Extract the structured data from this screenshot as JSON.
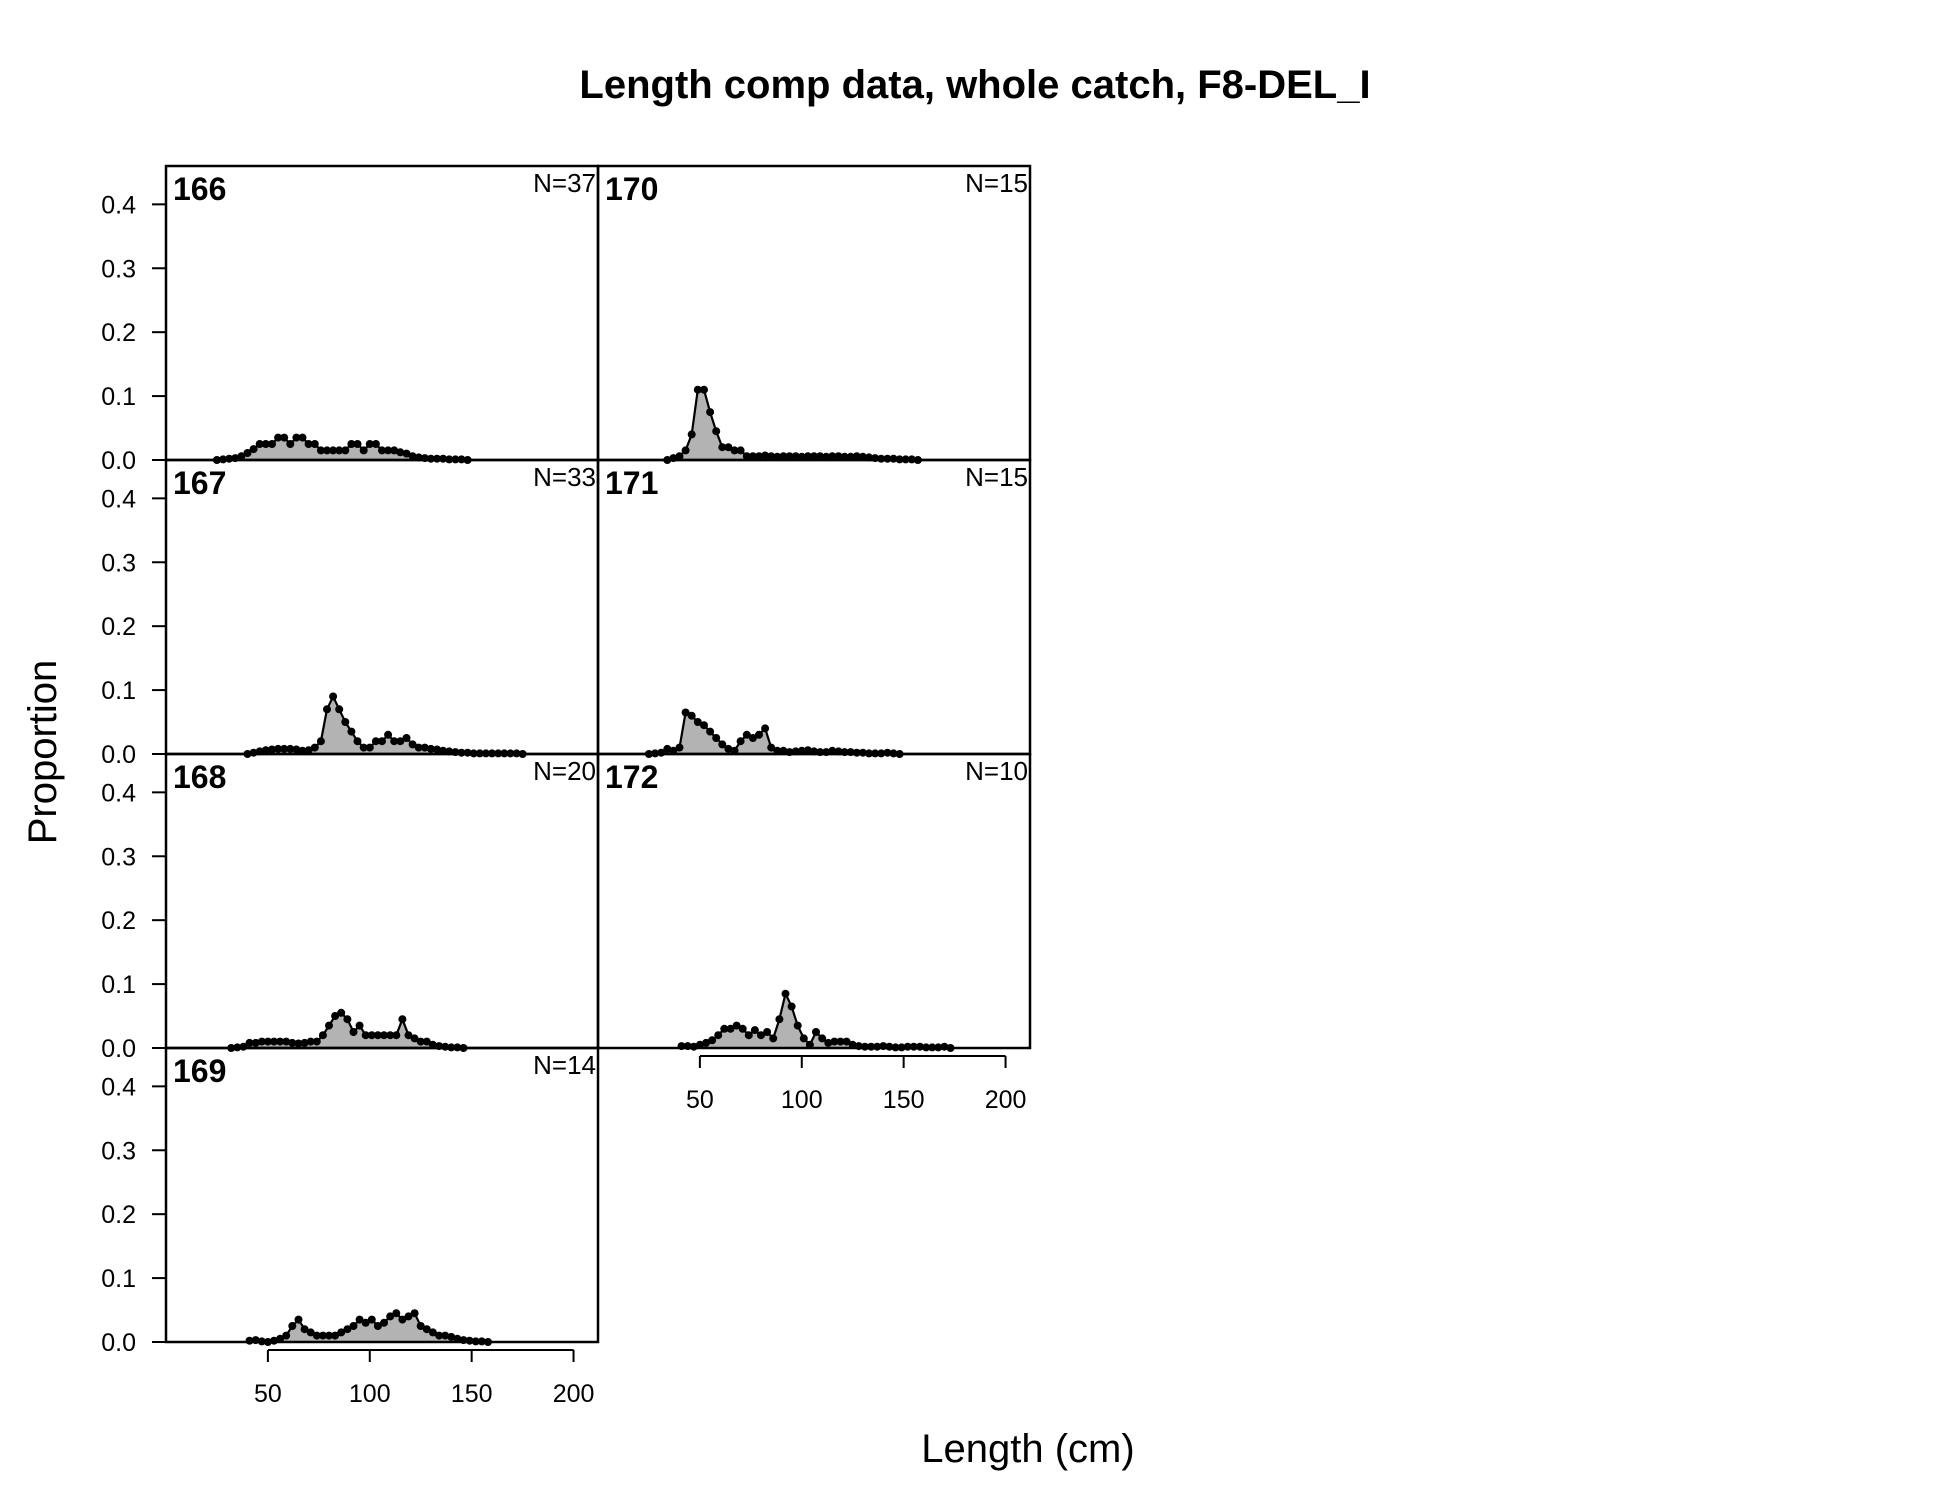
{
  "title": "Length comp data, whole catch, F8-DEL_I",
  "xlabel": "Length (cm)",
  "ylabel": "Proportion",
  "colors": {
    "fill": "#b3b3b3",
    "line": "#000000",
    "frame": "#000000"
  },
  "chart_data": {
    "type": "area",
    "title": "Length comp data, whole catch, F8-DEL_I",
    "xlabel": "Length (cm)",
    "ylabel": "Proportion",
    "xlim": [
      0,
      212
    ],
    "ylim": [
      0,
      0.46
    ],
    "x_ticks": [
      50,
      100,
      150,
      200
    ],
    "y_ticks": [
      0.0,
      0.1,
      0.2,
      0.3,
      0.4
    ],
    "y_tick_labels": [
      "0.0",
      "0.1",
      "0.2",
      "0.3",
      "0.4"
    ],
    "x_step": 3,
    "panels": [
      {
        "label": "166",
        "n_label": "N=37",
        "x0": 25,
        "values": [
          0,
          0.001,
          0.002,
          0.003,
          0.006,
          0.011,
          0.017,
          0.025,
          0.025,
          0.025,
          0.035,
          0.035,
          0.025,
          0.035,
          0.035,
          0.025,
          0.025,
          0.015,
          0.015,
          0.015,
          0.015,
          0.015,
          0.025,
          0.025,
          0.015,
          0.025,
          0.025,
          0.015,
          0.015,
          0.015,
          0.012,
          0.01,
          0.006,
          0.004,
          0.003,
          0.002,
          0.002,
          0.002,
          0.001,
          0.001,
          0.001,
          0
        ]
      },
      {
        "label": "170",
        "n_label": "N=15",
        "x0": 34,
        "values": [
          0,
          0.003,
          0.006,
          0.015,
          0.04,
          0.11,
          0.11,
          0.075,
          0.045,
          0.02,
          0.02,
          0.015,
          0.015,
          0.006,
          0.006,
          0.006,
          0.007,
          0.006,
          0.005,
          0.006,
          0.006,
          0.006,
          0.005,
          0.006,
          0.006,
          0.006,
          0.005,
          0.006,
          0.006,
          0.005,
          0.005,
          0.006,
          0.005,
          0.004,
          0.003,
          0.002,
          0.002,
          0.002,
          0.001,
          0.001,
          0.001,
          0
        ]
      },
      {
        "label": "167",
        "n_label": "N=33",
        "x0": 40,
        "values": [
          0,
          0.002,
          0.004,
          0.006,
          0.007,
          0.008,
          0.008,
          0.008,
          0.007,
          0.005,
          0.006,
          0.01,
          0.02,
          0.07,
          0.09,
          0.07,
          0.05,
          0.035,
          0.02,
          0.01,
          0.01,
          0.02,
          0.02,
          0.03,
          0.02,
          0.02,
          0.025,
          0.015,
          0.01,
          0.01,
          0.008,
          0.007,
          0.005,
          0.004,
          0.003,
          0.002,
          0.002,
          0.001,
          0.001,
          0.001,
          0.001,
          0.001,
          0.001,
          0.001,
          0.001,
          0
        ]
      },
      {
        "label": "171",
        "n_label": "N=15",
        "x0": 25,
        "values": [
          0,
          0.001,
          0.002,
          0.008,
          0.005,
          0.01,
          0.065,
          0.06,
          0.05,
          0.045,
          0.035,
          0.025,
          0.015,
          0.008,
          0.005,
          0.02,
          0.03,
          0.025,
          0.03,
          0.04,
          0.01,
          0.005,
          0.005,
          0.003,
          0.004,
          0.005,
          0.006,
          0.004,
          0.003,
          0.003,
          0.005,
          0.004,
          0.003,
          0.003,
          0.002,
          0.002,
          0.001,
          0.001,
          0.001,
          0.002,
          0.001,
          0
        ]
      },
      {
        "label": "168",
        "n_label": "N=20",
        "x0": 32,
        "values": [
          0,
          0.001,
          0.002,
          0.008,
          0.008,
          0.01,
          0.01,
          0.01,
          0.01,
          0.01,
          0.008,
          0.007,
          0.008,
          0.01,
          0.01,
          0.02,
          0.035,
          0.05,
          0.055,
          0.045,
          0.025,
          0.035,
          0.02,
          0.02,
          0.02,
          0.02,
          0.02,
          0.02,
          0.045,
          0.02,
          0.015,
          0.01,
          0.01,
          0.005,
          0.003,
          0.002,
          0.001,
          0.001,
          0
        ]
      },
      {
        "label": "172",
        "n_label": "N=10",
        "x0": 41,
        "values": [
          0.003,
          0.003,
          0.002,
          0.005,
          0.008,
          0.012,
          0.02,
          0.03,
          0.03,
          0.035,
          0.03,
          0.02,
          0.028,
          0.02,
          0.025,
          0.015,
          0.045,
          0.085,
          0.065,
          0.035,
          0.015,
          0.005,
          0.025,
          0.015,
          0.008,
          0.01,
          0.01,
          0.01,
          0.005,
          0.003,
          0.002,
          0.002,
          0.002,
          0.003,
          0.002,
          0.001,
          0.001,
          0.002,
          0.002,
          0.002,
          0.001,
          0.001,
          0.001,
          0.002,
          0
        ]
      },
      {
        "label": "169",
        "n_label": "N=14",
        "x0": 41,
        "values": [
          0.002,
          0.003,
          0.001,
          0,
          0.002,
          0.005,
          0.01,
          0.025,
          0.035,
          0.02,
          0.015,
          0.01,
          0.01,
          0.01,
          0.01,
          0.015,
          0.02,
          0.025,
          0.035,
          0.03,
          0.035,
          0.025,
          0.03,
          0.04,
          0.045,
          0.035,
          0.04,
          0.045,
          0.025,
          0.02,
          0.015,
          0.01,
          0.01,
          0.008,
          0.005,
          0.003,
          0.002,
          0.001,
          0.001,
          0
        ]
      }
    ]
  }
}
